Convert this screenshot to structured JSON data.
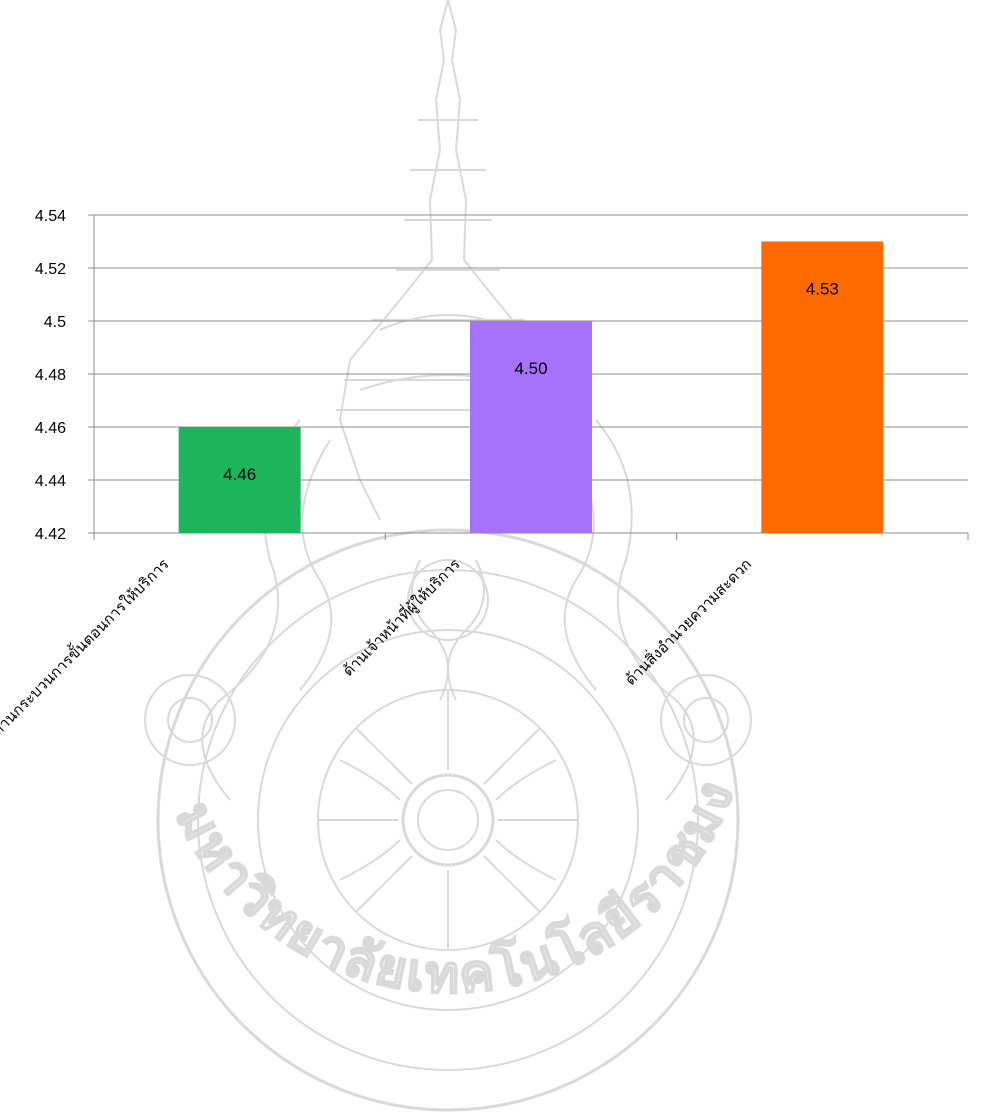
{
  "chart_data": {
    "type": "bar",
    "categories": [
      "ด้านกระบวนการขั้นตอนการให้บริการ",
      "ด้านเจ้าหน้าที่ผู้ให้บริการ",
      "ด้านสิ่งอำนวยความสะดวก"
    ],
    "values": [
      4.46,
      4.5,
      4.53
    ],
    "data_labels": [
      "4.46",
      "4.50",
      "4.53"
    ],
    "colors": [
      "#1db55c",
      "#a672fc",
      "#ff6a00"
    ],
    "ylim": [
      4.42,
      4.54
    ],
    "yticks": [
      4.42,
      4.44,
      4.46,
      4.48,
      4.5,
      4.52,
      4.54
    ],
    "ytick_labels": [
      "4.42",
      "4.44",
      "4.46",
      "4.48",
      "4.5",
      "4.52",
      "4.54"
    ],
    "grid": true,
    "legend": "none",
    "title": "",
    "xlabel": "",
    "ylabel": ""
  },
  "watermark": {
    "description_icon": "university-emblem-watermark",
    "text": "มหาวิทยาลัยเทคโนโลยีราชมงคลพระนคร"
  }
}
